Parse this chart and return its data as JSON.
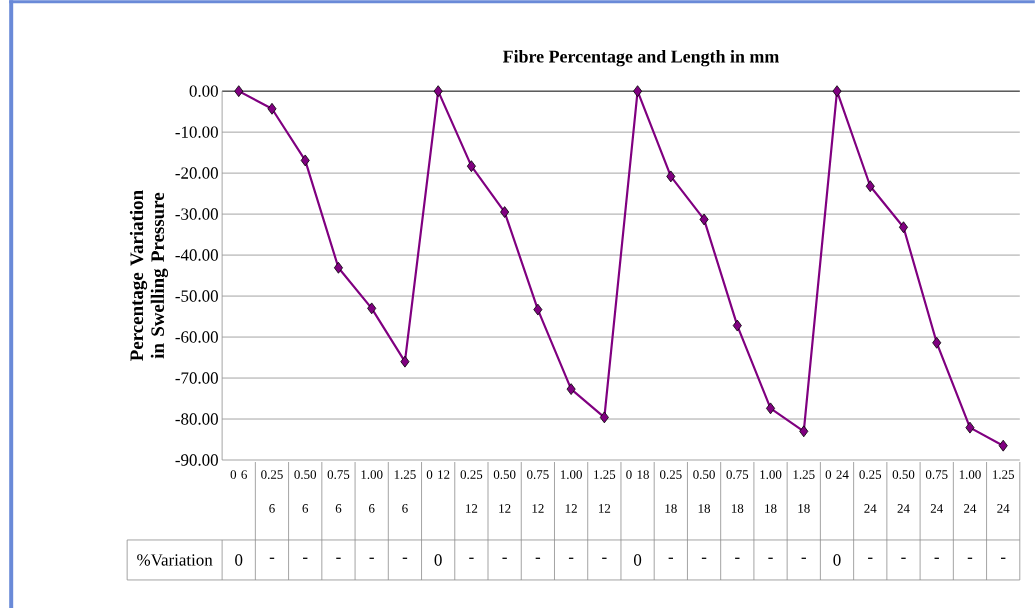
{
  "chart_data": {
    "type": "line",
    "title": "Fibre Percentage and Length in mm",
    "ylabel": "Percentage Variation in Swelling Pressure",
    "categories": [
      "0 6",
      "0.25 6",
      "0.50 6",
      "0.75 6",
      "1.00 6",
      "1.25 6",
      "0 12",
      "0.25 12",
      "0.50 12",
      "0.75 12",
      "1.00 12",
      "1.25 12",
      "0 18",
      "0.25 18",
      "0.50 18",
      "0.75 18",
      "1.00 18",
      "1.25 18",
      "0 24",
      "0.25 24",
      "0.50 24",
      "0.75 24",
      "1.00 24",
      "1.25 24"
    ],
    "series": [
      {
        "name": "%Variation",
        "color": "#800080",
        "values": [
          0,
          -4.3,
          -16.9,
          -43.1,
          -53.0,
          -66.0,
          0,
          -18.3,
          -29.5,
          -53.3,
          -72.7,
          -79.6,
          0,
          -20.8,
          -31.3,
          -57.2,
          -77.4,
          -83.0,
          0,
          -23.2,
          -33.2,
          -61.4,
          -82.1,
          -86.5
        ],
        "value_labels": [
          "0",
          "-",
          "-",
          "-",
          "-",
          "-",
          "0",
          "-",
          "-",
          "-",
          "-",
          "-",
          "0",
          "-",
          "-",
          "-",
          "-",
          "-",
          "0",
          "-",
          "-",
          "-",
          "-",
          "-"
        ]
      }
    ],
    "ylim": [
      -90,
      0
    ],
    "yticks": [
      {
        "value": 0,
        "label": "0.00"
      },
      {
        "value": -10,
        "label": "-10.00"
      },
      {
        "value": -20,
        "label": "-20.00"
      },
      {
        "value": -30,
        "label": "-30.00"
      },
      {
        "value": -40,
        "label": "-40.00"
      },
      {
        "value": -50,
        "label": "-50.00"
      },
      {
        "value": -60,
        "label": "-60.00"
      },
      {
        "value": -70,
        "label": "-70.00"
      },
      {
        "value": -80,
        "label": "-80.00"
      },
      {
        "value": -90,
        "label": "-90.00"
      }
    ],
    "grid": "y",
    "marker": "diamond",
    "line_style": "solid",
    "legend": false
  }
}
